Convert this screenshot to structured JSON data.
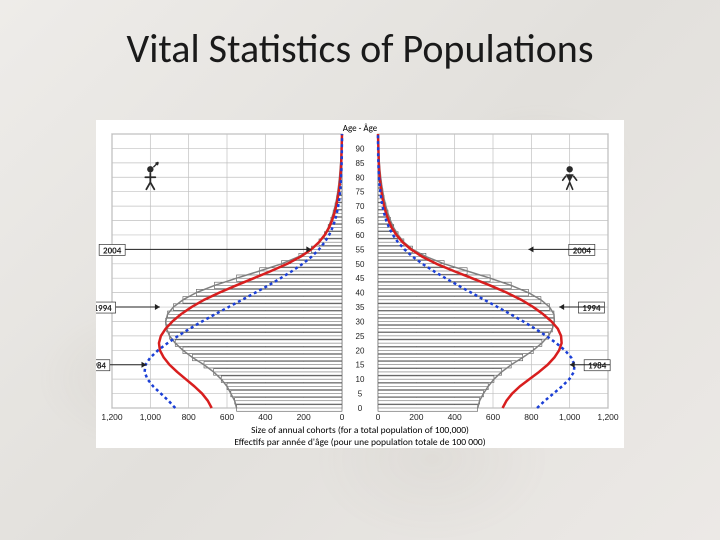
{
  "title": "Vital Statistics of Populations",
  "chart": {
    "type": "population-pyramid",
    "top_label": "Age - Âge",
    "caption_line1": "Size of annual cohorts (for a total population of 100,000)",
    "caption_line2": "Effectifs par année d'âge (pour une population totale de 100 000)",
    "background_color": "#ffffff",
    "grid_color": "#c0c0c0",
    "bar_fill": "#666666",
    "bar_stroke": "#333333",
    "axis_max": 1200,
    "age_max": 95,
    "xtick_step": 200,
    "xtick_labels_left": [
      "1,200",
      "1,000",
      "800",
      "600",
      "400",
      "200",
      "0"
    ],
    "xtick_labels_right": [
      "0",
      "200",
      "400",
      "600",
      "800",
      "1,000",
      "1,200"
    ],
    "ytick_step": 5,
    "ytick_labels": [
      "0",
      "5",
      "10",
      "15",
      "20",
      "25",
      "30",
      "35",
      "40",
      "45",
      "50",
      "55",
      "60",
      "65",
      "70",
      "75",
      "80",
      "85",
      "90"
    ],
    "series": [
      {
        "name": "cohort_2004",
        "label": "2004",
        "color": "#808080",
        "style": "solid",
        "line_width": 1.5,
        "male": [
          550,
          560,
          580,
          600,
          630,
          670,
          720,
          780,
          830,
          870,
          900,
          915,
          920,
          910,
          880,
          830,
          760,
          665,
          550,
          430,
          315,
          225,
          160,
          120,
          92,
          72,
          58,
          46,
          36,
          28,
          22,
          17,
          13,
          10,
          7,
          5,
          3,
          2,
          0
        ],
        "female": [
          520,
          530,
          550,
          575,
          605,
          645,
          695,
          755,
          810,
          855,
          890,
          910,
          920,
          918,
          895,
          850,
          785,
          695,
          585,
          465,
          345,
          250,
          180,
          135,
          105,
          82,
          65,
          52,
          41,
          32,
          25,
          19,
          14,
          10,
          7,
          5,
          3,
          2,
          0
        ]
      },
      {
        "name": "cohort_1994",
        "label": "1994",
        "color": "#d81e1e",
        "style": "solid",
        "line_width": 2.5,
        "male": [
          680,
          700,
          730,
          770,
          815,
          860,
          900,
          930,
          950,
          955,
          945,
          920,
          885,
          840,
          785,
          720,
          640,
          552,
          460,
          370,
          285,
          215,
          160,
          120,
          90,
          68,
          52,
          40,
          30,
          23,
          17,
          12,
          9,
          6,
          4,
          3,
          2,
          1,
          0
        ],
        "female": [
          650,
          670,
          700,
          740,
          790,
          840,
          885,
          920,
          945,
          958,
          955,
          938,
          905,
          862,
          810,
          748,
          672,
          585,
          490,
          395,
          305,
          230,
          172,
          128,
          96,
          72,
          55,
          42,
          32,
          24,
          18,
          13,
          9,
          6,
          4,
          3,
          2,
          1,
          0
        ]
      },
      {
        "name": "cohort_1984",
        "label": "1984",
        "color": "#1b3fd6",
        "style": "dotted",
        "line_width": 2.5,
        "male": [
          870,
          905,
          945,
          985,
          1015,
          1030,
          1025,
          1000,
          960,
          910,
          855,
          795,
          730,
          662,
          592,
          522,
          452,
          384,
          320,
          260,
          205,
          158,
          120,
          90,
          67,
          50,
          37,
          27,
          20,
          14,
          10,
          7,
          5,
          3,
          2,
          1,
          1,
          0,
          0
        ],
        "female": [
          830,
          870,
          915,
          960,
          998,
          1022,
          1025,
          1008,
          975,
          930,
          878,
          820,
          758,
          692,
          624,
          555,
          486,
          418,
          352,
          290,
          232,
          180,
          138,
          104,
          78,
          58,
          43,
          32,
          23,
          17,
          12,
          8,
          5,
          3,
          2,
          1,
          1,
          0,
          0
        ]
      }
    ],
    "year_labels": {
      "font_size": 9,
      "font_weight": "bold",
      "color": "#222222"
    },
    "gender_icons": {
      "male_color": "#2a2a2a",
      "female_color": "#2a2a2a"
    }
  }
}
